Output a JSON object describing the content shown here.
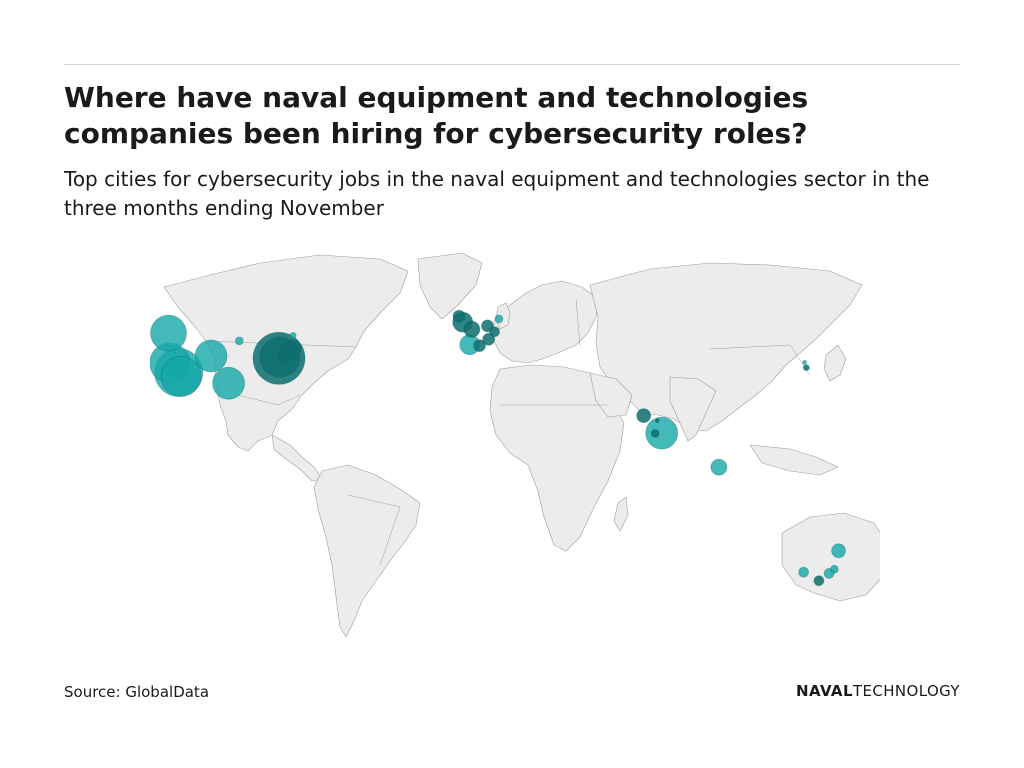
{
  "header": {
    "title": "Where have naval equipment and technologies companies been hiring for cybersecurity roles?",
    "subtitle": "Top cities for cybersecurity jobs in the naval equipment and technologies sector in the three months ending November"
  },
  "footer": {
    "source": "Source: GlobalData",
    "brand_bold": "NAVAL",
    "brand_light": "TECHNOLOGY"
  },
  "colors": {
    "land": "#ececec",
    "border": "#9e9e9e",
    "bubble": "#14a8a8",
    "bubble_dark": "#0d6f6f"
  },
  "map": {
    "projection": "equirectangular",
    "bubbles": [
      {
        "lon": -122.4,
        "lat": 47.6,
        "size": 18,
        "shade": "light"
      },
      {
        "lon": -104.9,
        "lat": 39.7,
        "size": 16,
        "shade": "light"
      },
      {
        "lon": -121.9,
        "lat": 37.3,
        "size": 20,
        "shade": "light"
      },
      {
        "lon": -118.2,
        "lat": 34.0,
        "size": 24,
        "shade": "light"
      },
      {
        "lon": -117.2,
        "lat": 32.7,
        "size": 20,
        "shade": "light"
      },
      {
        "lon": -97.7,
        "lat": 30.3,
        "size": 16,
        "shade": "light"
      },
      {
        "lon": -77.0,
        "lat": 38.9,
        "size": 26,
        "shade": "dark"
      },
      {
        "lon": -76.6,
        "lat": 39.3,
        "size": 20,
        "shade": "dark"
      },
      {
        "lon": -71.1,
        "lat": 42.4,
        "size": 8,
        "shade": "dark"
      },
      {
        "lon": -74.0,
        "lat": 40.7,
        "size": 8,
        "shade": "dark"
      },
      {
        "lon": -93.3,
        "lat": 44.9,
        "size": 4,
        "shade": "light"
      },
      {
        "lon": -71.2,
        "lat": 46.8,
        "size": 3,
        "shade": "light"
      },
      {
        "lon": -1.5,
        "lat": 51.4,
        "size": 10,
        "shade": "dark"
      },
      {
        "lon": -3.0,
        "lat": 53.4,
        "size": 6,
        "shade": "dark"
      },
      {
        "lon": 1.4,
        "lat": 43.6,
        "size": 10,
        "shade": "light"
      },
      {
        "lon": 2.3,
        "lat": 48.9,
        "size": 8,
        "shade": "dark"
      },
      {
        "lon": 5.4,
        "lat": 43.3,
        "size": 6,
        "shade": "dark"
      },
      {
        "lon": 8.7,
        "lat": 50.1,
        "size": 6,
        "shade": "dark"
      },
      {
        "lon": 11.6,
        "lat": 48.1,
        "size": 5,
        "shade": "dark"
      },
      {
        "lon": 13.4,
        "lat": 52.5,
        "size": 4,
        "shade": "light"
      },
      {
        "lon": 9.2,
        "lat": 45.5,
        "size": 6,
        "shade": "dark"
      },
      {
        "lon": 72.9,
        "lat": 19.1,
        "size": 7,
        "shade": "dark"
      },
      {
        "lon": 77.6,
        "lat": 13.0,
        "size": 4,
        "shade": "dark"
      },
      {
        "lon": 78.5,
        "lat": 17.4,
        "size": 2,
        "shade": "dark"
      },
      {
        "lon": 80.3,
        "lat": 13.1,
        "size": 16,
        "shade": "light"
      },
      {
        "lon": 103.8,
        "lat": 1.35,
        "size": 8,
        "shade": "light"
      },
      {
        "lon": 139.7,
        "lat": 35.7,
        "size": 3,
        "shade": "dark"
      },
      {
        "lon": 139.0,
        "lat": 37.5,
        "size": 2,
        "shade": "light"
      },
      {
        "lon": 153.0,
        "lat": -27.5,
        "size": 7,
        "shade": "light"
      },
      {
        "lon": 151.2,
        "lat": -33.9,
        "size": 4,
        "shade": "light"
      },
      {
        "lon": 149.1,
        "lat": -35.3,
        "size": 5,
        "shade": "light"
      },
      {
        "lon": 144.9,
        "lat": -37.8,
        "size": 5,
        "shade": "dark"
      },
      {
        "lon": 138.6,
        "lat": -34.9,
        "size": 5,
        "shade": "light"
      }
    ]
  }
}
